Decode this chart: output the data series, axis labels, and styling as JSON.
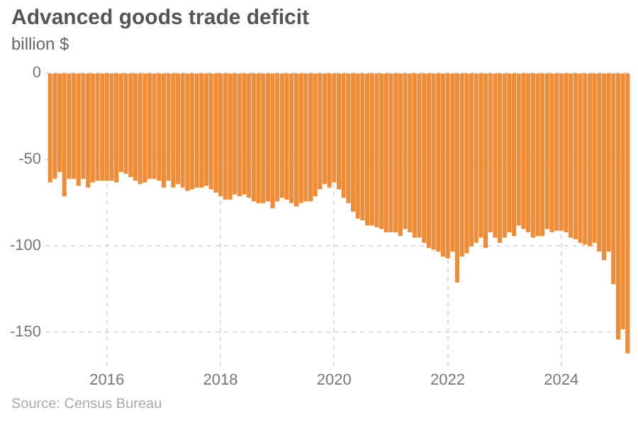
{
  "chart_data": {
    "type": "bar",
    "title": "Advanced goods trade deficit",
    "subtitle": "billion $",
    "annotations": [
      "Source: Census Bureau"
    ],
    "color": "#ef8c38",
    "x": [
      "2015-01",
      "2015-02",
      "2015-03",
      "2015-04",
      "2015-05",
      "2015-06",
      "2015-07",
      "2015-08",
      "2015-09",
      "2015-10",
      "2015-11",
      "2015-12",
      "2016-01",
      "2016-02",
      "2016-03",
      "2016-04",
      "2016-05",
      "2016-06",
      "2016-07",
      "2016-08",
      "2016-09",
      "2016-10",
      "2016-11",
      "2016-12",
      "2017-01",
      "2017-02",
      "2017-03",
      "2017-04",
      "2017-05",
      "2017-06",
      "2017-07",
      "2017-08",
      "2017-09",
      "2017-10",
      "2017-11",
      "2017-12",
      "2018-01",
      "2018-02",
      "2018-03",
      "2018-04",
      "2018-05",
      "2018-06",
      "2018-07",
      "2018-08",
      "2018-09",
      "2018-10",
      "2018-11",
      "2018-12",
      "2019-01",
      "2019-02",
      "2019-03",
      "2019-04",
      "2019-05",
      "2019-06",
      "2019-07",
      "2019-08",
      "2019-09",
      "2019-10",
      "2019-11",
      "2019-12",
      "2020-01",
      "2020-02",
      "2020-03",
      "2020-04",
      "2020-05",
      "2020-06",
      "2020-07",
      "2020-08",
      "2020-09",
      "2020-10",
      "2020-11",
      "2020-12",
      "2021-01",
      "2021-02",
      "2021-03",
      "2021-04",
      "2021-05",
      "2021-06",
      "2021-07",
      "2021-08",
      "2021-09",
      "2021-10",
      "2021-11",
      "2021-12",
      "2022-01",
      "2022-02",
      "2022-03",
      "2022-04",
      "2022-05",
      "2022-06",
      "2022-07",
      "2022-08",
      "2022-09",
      "2022-10",
      "2022-11",
      "2022-12",
      "2023-01",
      "2023-02",
      "2023-03",
      "2023-04",
      "2023-05",
      "2023-06",
      "2023-07",
      "2023-08",
      "2023-09",
      "2023-10",
      "2023-11",
      "2023-12",
      "2024-01",
      "2024-02",
      "2024-03",
      "2024-04",
      "2024-05",
      "2024-06",
      "2024-07",
      "2024-08",
      "2024-09",
      "2024-10",
      "2024-11",
      "2024-12",
      "2025-01",
      "2025-02",
      "2025-03"
    ],
    "values": [
      -63,
      -61,
      -57,
      -71,
      -61,
      -61,
      -65,
      -61,
      -66,
      -63,
      -62,
      -62,
      -62,
      -62,
      -63,
      -57,
      -58,
      -60,
      -62,
      -64,
      -63,
      -61,
      -61,
      -62,
      -66,
      -62,
      -66,
      -64,
      -66,
      -68,
      -67,
      -66,
      -66,
      -65,
      -67,
      -69,
      -71,
      -73,
      -73,
      -70,
      -71,
      -70,
      -72,
      -74,
      -75,
      -75,
      -74,
      -78,
      -74,
      -72,
      -73,
      -75,
      -77,
      -75,
      -74,
      -74,
      -71,
      -67,
      -64,
      -66,
      -63,
      -67,
      -72,
      -75,
      -80,
      -84,
      -85,
      -88,
      -88,
      -89,
      -90,
      -92,
      -92,
      -92,
      -94,
      -90,
      -92,
      -95,
      -95,
      -98,
      -101,
      -102,
      -103,
      -106,
      -107,
      -103,
      -121,
      -106,
      -104,
      -100,
      -98,
      -95,
      -101,
      -92,
      -95,
      -98,
      -95,
      -92,
      -94,
      -88,
      -90,
      -92,
      -95,
      -94,
      -94,
      -90,
      -92,
      -91,
      -91,
      -92,
      -95,
      -96,
      -98,
      -99,
      -100,
      -98,
      -103,
      -108,
      -103,
      -122,
      -154,
      -148,
      -162
    ],
    "xlim": [
      "2014-12",
      "2025-04"
    ],
    "xticks": [
      "2016",
      "2018",
      "2020",
      "2022",
      "2024"
    ],
    "ylim": [
      -170,
      0
    ],
    "yticks": [
      0,
      -50,
      -100,
      -150
    ],
    "grid": true
  }
}
